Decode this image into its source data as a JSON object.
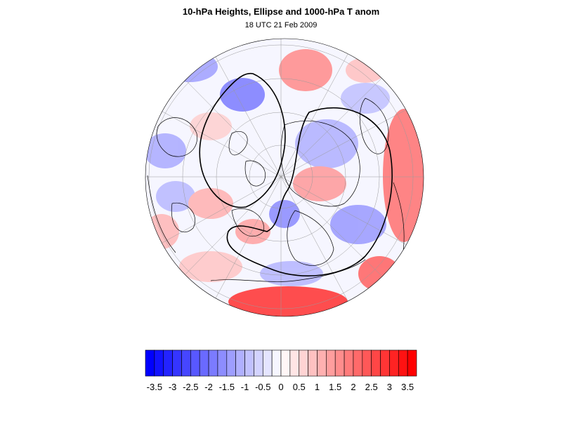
{
  "title": "10-hPa Heights, Ellipse and 1000-hPa T anom",
  "subtitle": "18 UTC 21 Feb 2009",
  "map": {
    "projection": "polar-stereographic",
    "hemisphere": "northern",
    "field": "1000-hPa T anom",
    "contour_field": "10-hPa Heights, Ellipse",
    "coastlines": true,
    "gridlines": true
  },
  "colorbar": {
    "orientation": "horizontal",
    "tick_labels": [
      "-3.5",
      "-3",
      "-2.5",
      "-2",
      "-1.5",
      "-1",
      "-0.5",
      "0",
      "0.5",
      "1",
      "1.5",
      "2",
      "2.5",
      "3",
      "3.5"
    ],
    "range": [
      -3.75,
      3.75
    ],
    "step": 0.25,
    "colors": {
      "negative_max": "#0000ff",
      "neutral": "#ffffff",
      "positive_max": "#ff0000"
    }
  }
}
